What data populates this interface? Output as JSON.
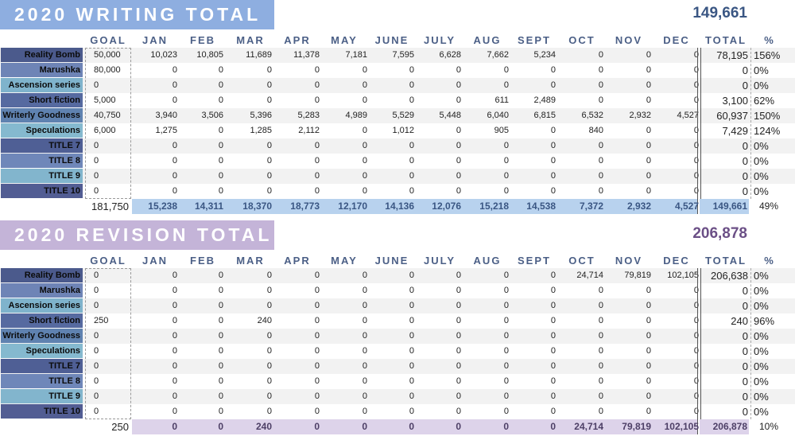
{
  "columns": [
    "GOAL",
    "JAN",
    "FEB",
    "MAR",
    "APR",
    "MAY",
    "JUNE",
    "JULY",
    "AUG",
    "SEPT",
    "OCT",
    "NOV",
    "DEC",
    "TOTAL",
    "%"
  ],
  "writing": {
    "title": "2020 WRITING TOTAL",
    "grand_total": "149,661",
    "rows": [
      {
        "label": "Reality Bomb",
        "goal": "50,000",
        "months": [
          "10,023",
          "10,805",
          "11,689",
          "11,378",
          "7,181",
          "7,595",
          "6,628",
          "7,662",
          "5,234",
          "0",
          "0",
          "0"
        ],
        "total": "78,195",
        "pct": "156%"
      },
      {
        "label": "Marushka",
        "goal": "80,000",
        "months": [
          "0",
          "0",
          "0",
          "0",
          "0",
          "0",
          "0",
          "0",
          "0",
          "0",
          "0",
          "0"
        ],
        "total": "0",
        "pct": "0%"
      },
      {
        "label": "Ascension series",
        "goal": "0",
        "months": [
          "0",
          "0",
          "0",
          "0",
          "0",
          "0",
          "0",
          "0",
          "0",
          "0",
          "0",
          "0"
        ],
        "total": "0",
        "pct": "0%"
      },
      {
        "label": "Short fiction",
        "goal": "5,000",
        "months": [
          "0",
          "0",
          "0",
          "0",
          "0",
          "0",
          "0",
          "611",
          "2,489",
          "0",
          "0",
          "0"
        ],
        "total": "3,100",
        "pct": "62%"
      },
      {
        "label": "Writerly Goodness",
        "goal": "40,750",
        "months": [
          "3,940",
          "3,506",
          "5,396",
          "5,283",
          "4,989",
          "5,529",
          "5,448",
          "6,040",
          "6,815",
          "6,532",
          "2,932",
          "4,527"
        ],
        "total": "60,937",
        "pct": "150%"
      },
      {
        "label": "Speculations",
        "goal": "6,000",
        "months": [
          "1,275",
          "0",
          "1,285",
          "2,112",
          "0",
          "1,012",
          "0",
          "905",
          "0",
          "840",
          "0",
          "0"
        ],
        "total": "7,429",
        "pct": "124%"
      },
      {
        "label": "TITLE 7",
        "goal": "0",
        "months": [
          "0",
          "0",
          "0",
          "0",
          "0",
          "0",
          "0",
          "0",
          "0",
          "0",
          "0",
          "0"
        ],
        "total": "0",
        "pct": "0%"
      },
      {
        "label": "TITLE 8",
        "goal": "0",
        "months": [
          "0",
          "0",
          "0",
          "0",
          "0",
          "0",
          "0",
          "0",
          "0",
          "0",
          "0",
          "0"
        ],
        "total": "0",
        "pct": "0%"
      },
      {
        "label": "TITLE 9",
        "goal": "0",
        "months": [
          "0",
          "0",
          "0",
          "0",
          "0",
          "0",
          "0",
          "0",
          "0",
          "0",
          "0",
          "0"
        ],
        "total": "0",
        "pct": "0%"
      },
      {
        "label": "TITLE 10",
        "goal": "0",
        "months": [
          "0",
          "0",
          "0",
          "0",
          "0",
          "0",
          "0",
          "0",
          "0",
          "0",
          "0",
          "0"
        ],
        "total": "0",
        "pct": "0%"
      }
    ],
    "summary": {
      "goal": "181,750",
      "months": [
        "15,238",
        "14,311",
        "18,370",
        "18,773",
        "12,170",
        "14,136",
        "12,076",
        "15,218",
        "14,538",
        "7,372",
        "2,932",
        "4,527"
      ],
      "total": "149,661",
      "pct": "49%"
    }
  },
  "revision": {
    "title": "2020 REVISION TOTAL",
    "grand_total": "206,878",
    "rows": [
      {
        "label": "Reality Bomb",
        "goal": "0",
        "months": [
          "0",
          "0",
          "0",
          "0",
          "0",
          "0",
          "0",
          "0",
          "0",
          "24,714",
          "79,819",
          "102,105"
        ],
        "total": "206,638",
        "pct": "0%"
      },
      {
        "label": "Marushka",
        "goal": "0",
        "months": [
          "0",
          "0",
          "0",
          "0",
          "0",
          "0",
          "0",
          "0",
          "0",
          "0",
          "0",
          "0"
        ],
        "total": "0",
        "pct": "0%"
      },
      {
        "label": "Ascension series",
        "goal": "0",
        "months": [
          "0",
          "0",
          "0",
          "0",
          "0",
          "0",
          "0",
          "0",
          "0",
          "0",
          "0",
          "0"
        ],
        "total": "0",
        "pct": "0%"
      },
      {
        "label": "Short fiction",
        "goal": "250",
        "months": [
          "0",
          "0",
          "240",
          "0",
          "0",
          "0",
          "0",
          "0",
          "0",
          "0",
          "0",
          "0"
        ],
        "total": "240",
        "pct": "96%"
      },
      {
        "label": "Writerly Goodness",
        "goal": "0",
        "months": [
          "0",
          "0",
          "0",
          "0",
          "0",
          "0",
          "0",
          "0",
          "0",
          "0",
          "0",
          "0"
        ],
        "total": "0",
        "pct": "0%"
      },
      {
        "label": "Speculations",
        "goal": "0",
        "months": [
          "0",
          "0",
          "0",
          "0",
          "0",
          "0",
          "0",
          "0",
          "0",
          "0",
          "0",
          "0"
        ],
        "total": "0",
        "pct": "0%"
      },
      {
        "label": "TITLE 7",
        "goal": "0",
        "months": [
          "0",
          "0",
          "0",
          "0",
          "0",
          "0",
          "0",
          "0",
          "0",
          "0",
          "0",
          "0"
        ],
        "total": "0",
        "pct": "0%"
      },
      {
        "label": "TITLE 8",
        "goal": "0",
        "months": [
          "0",
          "0",
          "0",
          "0",
          "0",
          "0",
          "0",
          "0",
          "0",
          "0",
          "0",
          "0"
        ],
        "total": "0",
        "pct": "0%"
      },
      {
        "label": "TITLE 9",
        "goal": "0",
        "months": [
          "0",
          "0",
          "0",
          "0",
          "0",
          "0",
          "0",
          "0",
          "0",
          "0",
          "0",
          "0"
        ],
        "total": "0",
        "pct": "0%"
      },
      {
        "label": "TITLE 10",
        "goal": "0",
        "months": [
          "0",
          "0",
          "0",
          "0",
          "0",
          "0",
          "0",
          "0",
          "0",
          "0",
          "0",
          "0"
        ],
        "total": "0",
        "pct": "0%"
      }
    ],
    "summary": {
      "goal": "250",
      "months": [
        "0",
        "0",
        "240",
        "0",
        "0",
        "0",
        "0",
        "0",
        "0",
        "24,714",
        "79,819",
        "102,105"
      ],
      "total": "206,878",
      "pct": "10%"
    }
  }
}
